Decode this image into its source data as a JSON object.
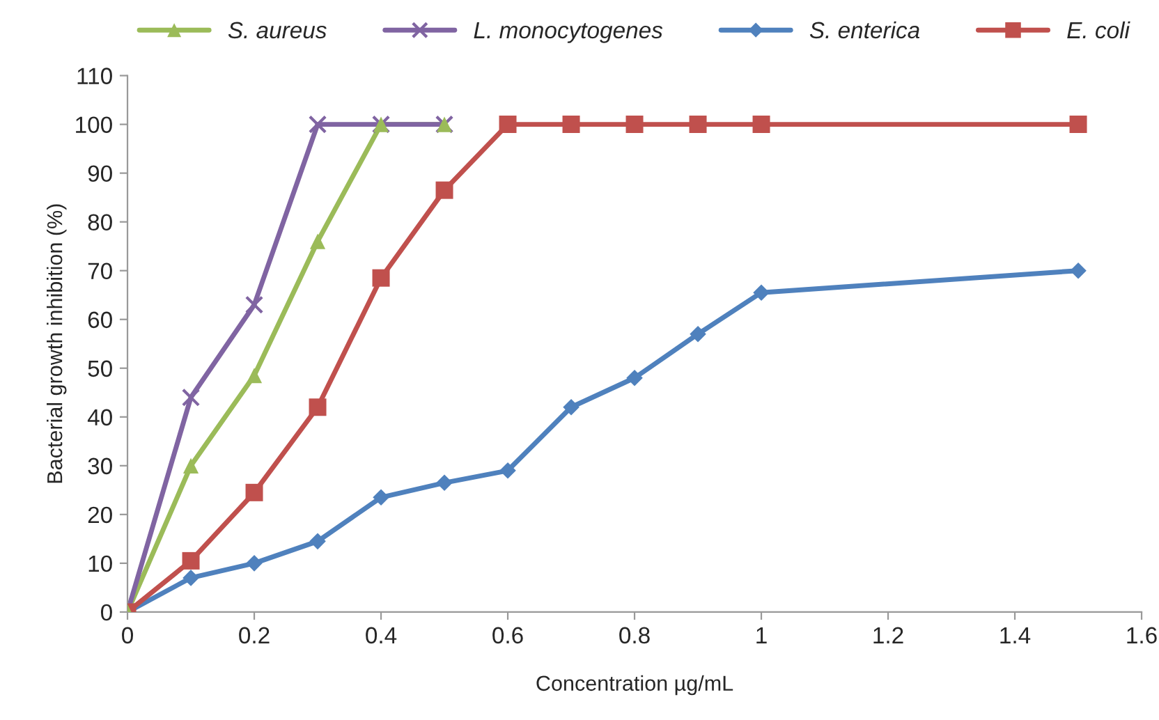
{
  "chart_data": {
    "type": "line",
    "xlabel": "Concentration µg/mL",
    "ylabel": "Bacterial growth inhibition (%)",
    "xlim": [
      0,
      1.6
    ],
    "xticks": [
      0,
      0.2,
      0.4,
      0.6,
      0.8,
      1,
      1.2,
      1.4,
      1.6
    ],
    "ylim": [
      0,
      110
    ],
    "yticks": [
      0,
      10,
      20,
      30,
      40,
      50,
      60,
      70,
      80,
      90,
      100,
      110
    ],
    "grid": false,
    "legend": "top",
    "line_style": "solid",
    "series": [
      {
        "name": "S. aureus",
        "color": "#9bbb59",
        "marker": "triangle",
        "x": [
          0,
          0.1,
          0.2,
          0.3,
          0.4,
          0.5
        ],
        "values": [
          0,
          30,
          48.5,
          76,
          100,
          100
        ]
      },
      {
        "name": "L. monocytogenes",
        "color": "#8064a2",
        "marker": "cross",
        "x": [
          0,
          0.1,
          0.2,
          0.3,
          0.4,
          0.5
        ],
        "values": [
          0,
          44,
          63,
          100,
          100,
          100
        ]
      },
      {
        "name": "S. enterica",
        "color": "#4f81bd",
        "marker": "diamond",
        "x": [
          0,
          0.1,
          0.2,
          0.3,
          0.4,
          0.5,
          0.6,
          0.7,
          0.8,
          0.9,
          1.0,
          1.5
        ],
        "values": [
          0,
          7,
          10,
          14.5,
          23.5,
          26.5,
          29,
          42,
          48,
          57,
          65.5,
          70
        ]
      },
      {
        "name": "E. coli",
        "color": "#c0504d",
        "marker": "square",
        "x": [
          0,
          0.1,
          0.2,
          0.3,
          0.4,
          0.5,
          0.6,
          0.7,
          0.8,
          0.9,
          1.0,
          1.5
        ],
        "values": [
          0,
          10.5,
          24.5,
          42,
          68.5,
          86.5,
          100,
          100,
          100,
          100,
          100,
          100
        ]
      }
    ]
  }
}
